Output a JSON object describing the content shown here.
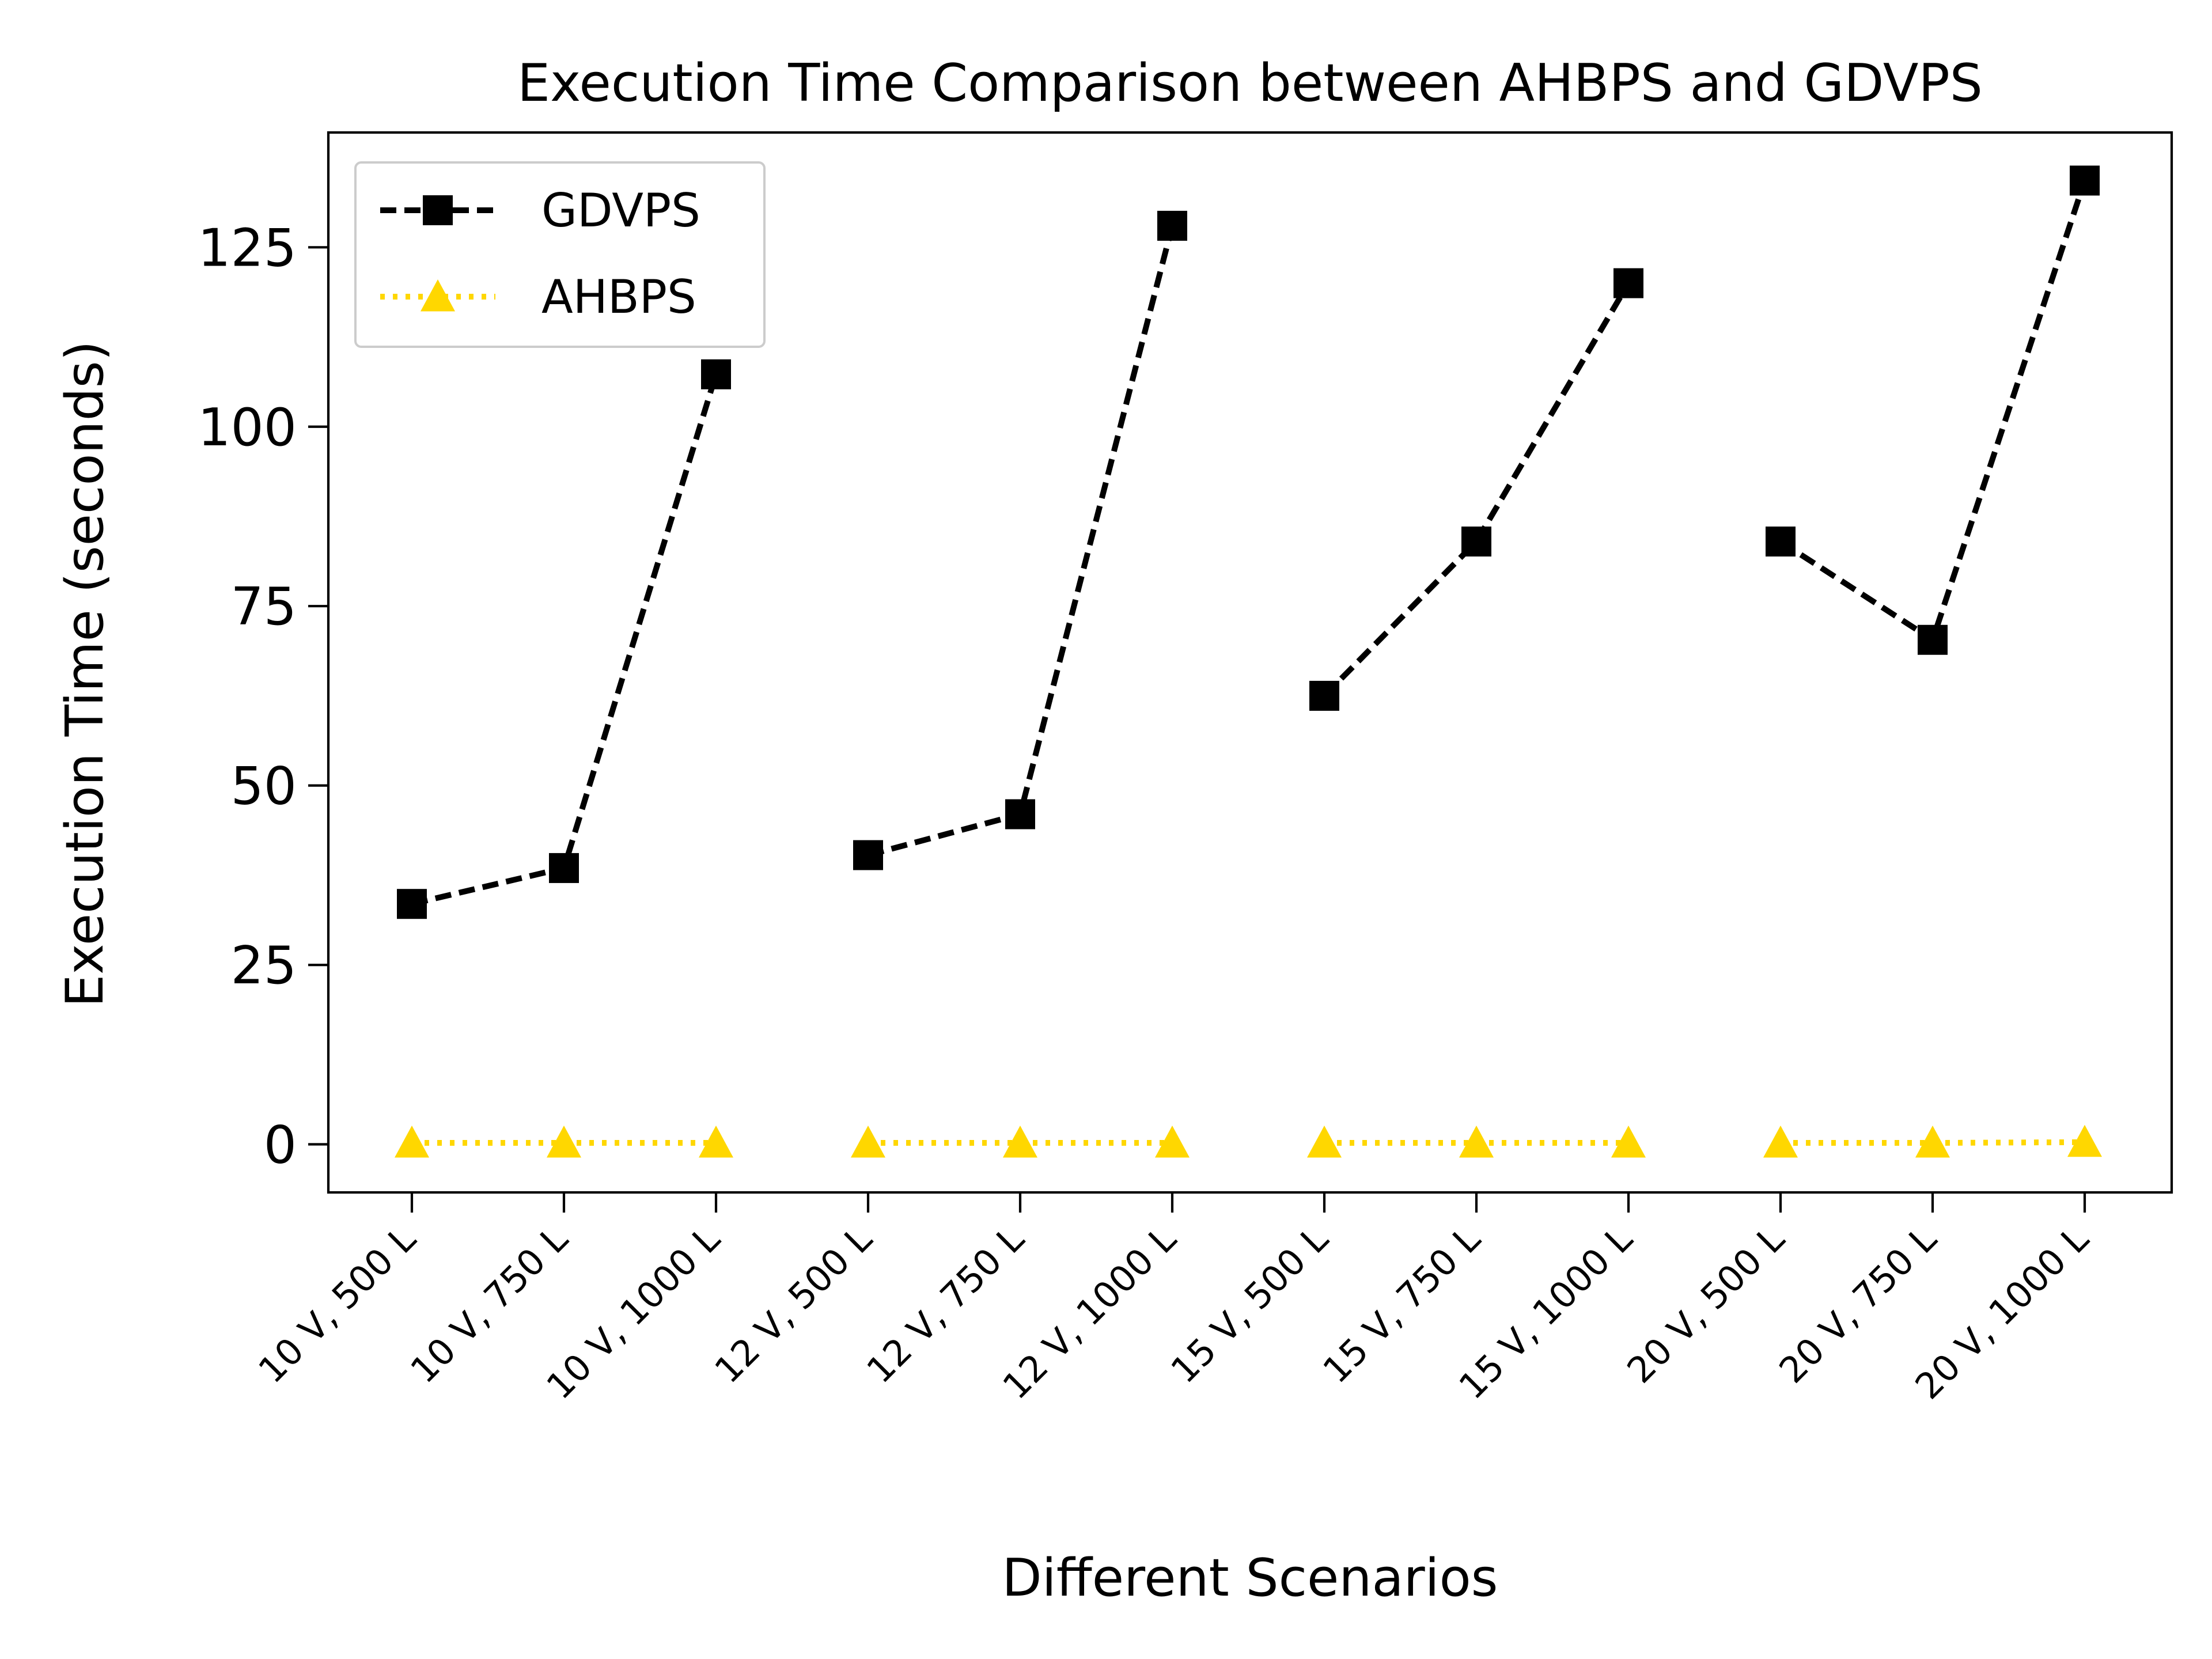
{
  "chart_data": {
    "type": "line",
    "title": "Execution Time Comparison between AHBPS and GDVPS",
    "xlabel": "Different Scenarios",
    "ylabel": "Execution Time (seconds)",
    "ylim": [
      -6.7,
      141
    ],
    "yticks": [
      0,
      25,
      50,
      75,
      100,
      125
    ],
    "grid": false,
    "legend_position": "top-left",
    "groups": [
      [
        "10 V, 500 L",
        "10 V, 750 L",
        "10 V, 1000 L"
      ],
      [
        "12 V, 500 L",
        "12 V, 750 L",
        "12 V, 1000 L"
      ],
      [
        "15 V, 500 L",
        "15 V, 750 L",
        "15 V, 1000 L"
      ],
      [
        "20 V, 500 L",
        "20 V, 750 L",
        "20 V, 1000 L"
      ]
    ],
    "categories": [
      "10 V, 500 L",
      "10 V, 750 L",
      "10 V, 1000 L",
      "12 V, 500 L",
      "12 V, 750 L",
      "12 V, 1000 L",
      "15 V, 500 L",
      "15 V, 750 L",
      "15 V, 1000 L",
      "20 V, 500 L",
      "20 V, 750 L",
      "20 V, 1000 L"
    ],
    "series": [
      {
        "name": "GDVPS",
        "color": "#000000",
        "marker": "square",
        "line_style": "dashed",
        "values": [
          33.5,
          38.5,
          107.3,
          40.3,
          46.0,
          128.0,
          62.5,
          84.0,
          120.0,
          84.0,
          70.3,
          134.3
        ]
      },
      {
        "name": "AHBPS",
        "color": "#FFD700",
        "marker": "triangle-up",
        "line_style": "dotted",
        "values": [
          0.2,
          0.2,
          0.2,
          0.2,
          0.2,
          0.2,
          0.2,
          0.2,
          0.2,
          0.2,
          0.2,
          0.3
        ]
      }
    ]
  }
}
